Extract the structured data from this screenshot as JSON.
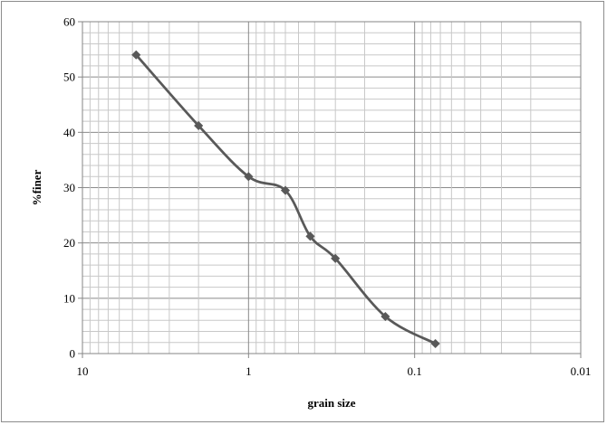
{
  "chart_data": {
    "type": "scatter",
    "title": "",
    "xlabel": "grain size",
    "ylabel": "%finer",
    "x_scale": "log",
    "x_reversed": true,
    "xlim": [
      10,
      0.01
    ],
    "ylim": [
      0,
      60
    ],
    "x_ticks": [
      10,
      1,
      0.1,
      0.01
    ],
    "x_tick_labels": [
      "10",
      "1",
      "0.1",
      "0.01"
    ],
    "y_ticks": [
      0,
      10,
      20,
      30,
      40,
      50,
      60
    ],
    "y_tick_labels": [
      "0",
      "10",
      "20",
      "30",
      "40",
      "50",
      "60"
    ],
    "grid": true,
    "legend": "none",
    "series": [
      {
        "line_style": "smooth-line-with-markers",
        "marker": "diamond",
        "color": "#595959",
        "points": [
          {
            "x": 4.75,
            "y": 54.0
          },
          {
            "x": 2.0,
            "y": 41.2
          },
          {
            "x": 1.0,
            "y": 32.0
          },
          {
            "x": 0.6,
            "y": 29.5
          },
          {
            "x": 0.425,
            "y": 21.2
          },
          {
            "x": 0.3,
            "y": 17.2
          },
          {
            "x": 0.15,
            "y": 6.7
          },
          {
            "x": 0.075,
            "y": 1.8
          }
        ]
      }
    ]
  }
}
